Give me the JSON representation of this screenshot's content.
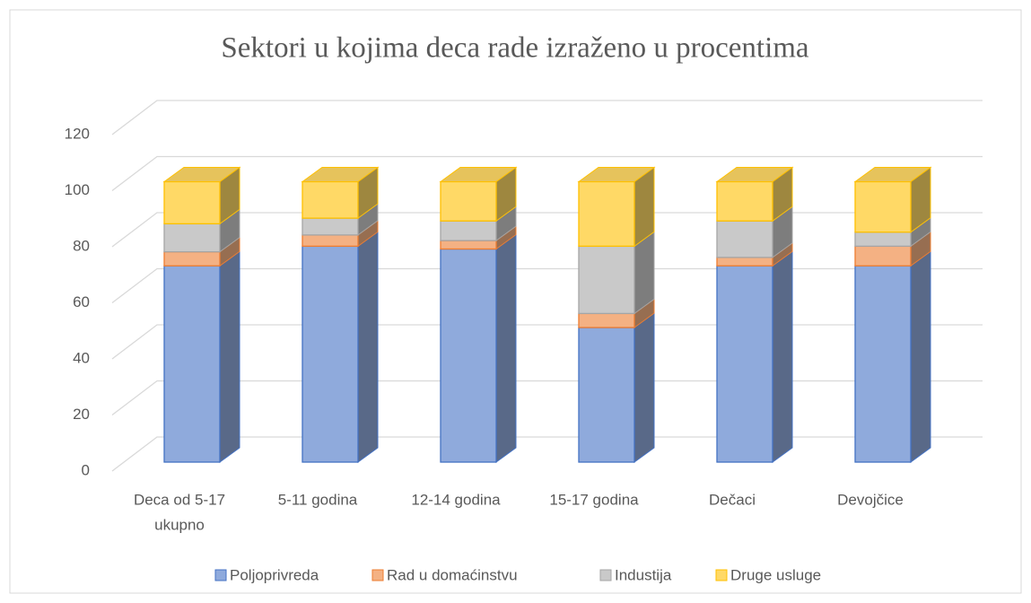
{
  "chart_data": {
    "type": "bar3d_stacked",
    "title": "Sektori u kojima deca rade izraženo u procentima",
    "categories": [
      [
        "Deca od 5-17",
        "ukupno"
      ],
      [
        "5-11 godina"
      ],
      [
        "12-14 godina"
      ],
      [
        "15-17 godina"
      ],
      [
        "Dečaci"
      ],
      [
        "Devojčice"
      ]
    ],
    "series": [
      {
        "name": "Poljoprivreda",
        "color": "#8faadc",
        "edge": "#4472c4",
        "values": [
          70,
          77,
          76,
          48,
          70,
          70
        ]
      },
      {
        "name": "Rad u domaćinstvu",
        "color": "#f4b183",
        "edge": "#ed7d31",
        "values": [
          5,
          4,
          3,
          5,
          3,
          7
        ]
      },
      {
        "name": "Industija",
        "color": "#c9c9c9",
        "edge": "#a5a5a5",
        "values": [
          10,
          6,
          7,
          24,
          13,
          5
        ]
      },
      {
        "name": "Druge usluge",
        "color": "#ffd966",
        "edge": "#ffc000",
        "values": [
          15,
          13,
          14,
          23,
          14,
          18
        ]
      }
    ],
    "ylim": [
      0,
      120
    ],
    "yticks": [
      0,
      20,
      40,
      60,
      80,
      100,
      120
    ],
    "grid": true,
    "legend": "bottom"
  }
}
